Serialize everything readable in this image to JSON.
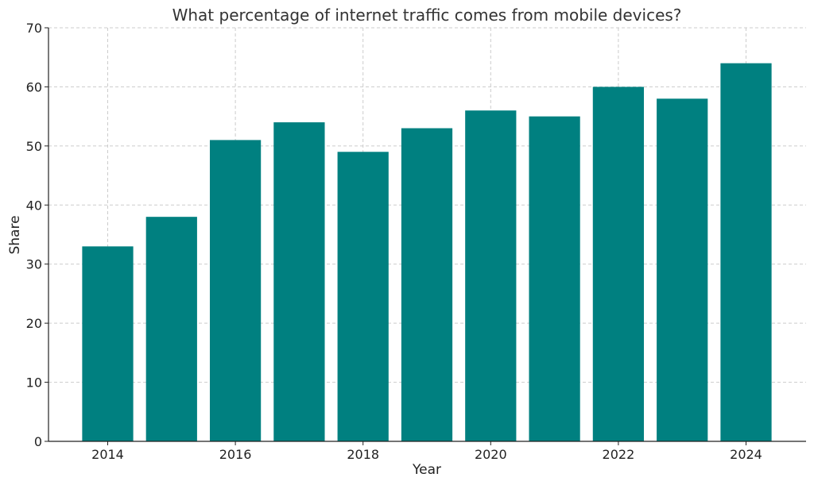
{
  "colors": {
    "bar": "#008080",
    "grid": "#cccccc",
    "axis": "#222222",
    "title": "#333333"
  },
  "chart_data": {
    "type": "bar",
    "title": "What percentage of internet traffic comes from mobile devices?",
    "xlabel": "Year",
    "ylabel": "Share",
    "categories": [
      2014,
      2015,
      2016,
      2017,
      2018,
      2019,
      2020,
      2021,
      2022,
      2023,
      2024
    ],
    "values": [
      33,
      38,
      51,
      54,
      49,
      53,
      56,
      55,
      60,
      58,
      64
    ],
    "xticks": [
      2014,
      2016,
      2018,
      2020,
      2022,
      2024
    ],
    "yticks": [
      0,
      10,
      20,
      30,
      40,
      50,
      60,
      70
    ],
    "ylim": [
      0,
      70
    ],
    "grid": true
  }
}
